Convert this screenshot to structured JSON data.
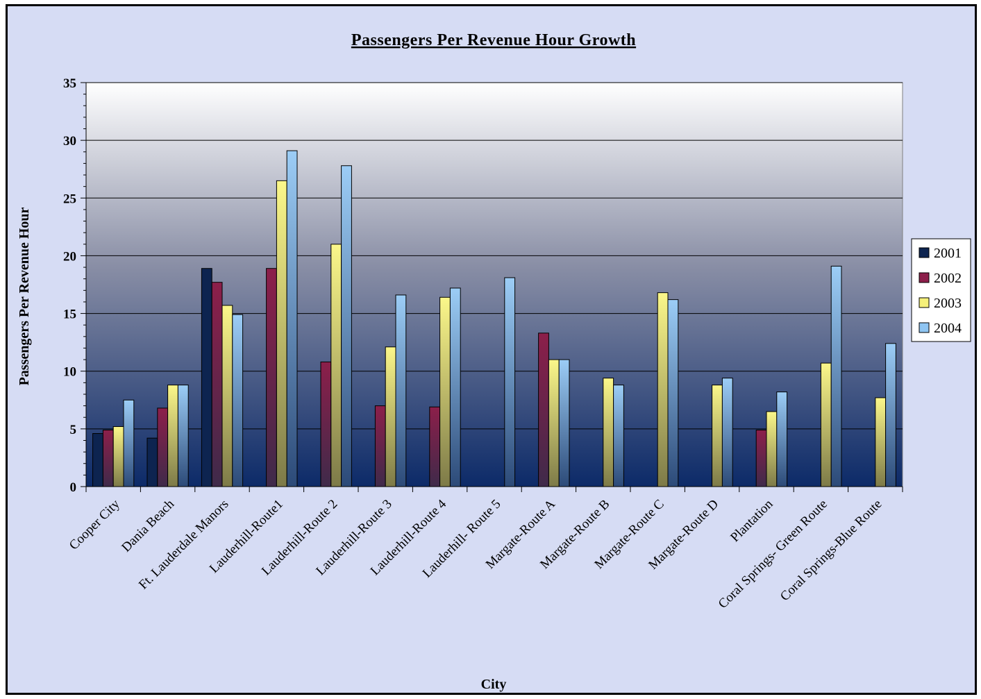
{
  "chart_data": {
    "type": "bar",
    "title": "Passengers Per Revenue Hour Growth",
    "xlabel": "City",
    "ylabel": "Passengers Per Revenue Hour",
    "ylim": [
      0,
      35
    ],
    "yticks": [
      "0",
      "5",
      "10",
      "15",
      "20",
      "25",
      "30",
      "35"
    ],
    "grid": true,
    "legend_position": "right",
    "categories": [
      "Cooper City",
      "Dania Beach",
      "Ft. Lauderdale Manors",
      "Lauderhill-Route1",
      "Lauderhill-Route 2",
      "Lauderhill-Route 3",
      "Lauderhill-Route 4",
      "Lauderhill- Route 5",
      "Margate-Route A",
      "Margate-Route B",
      "Margate-Route C",
      "Margate-Route D",
      "Plantation",
      "Coral Springs- Green Route",
      "Coral Springs-Blue Route"
    ],
    "series": [
      {
        "name": "2001",
        "color": "#0d2450",
        "values": [
          4.6,
          4.2,
          18.9,
          null,
          null,
          null,
          null,
          null,
          null,
          null,
          null,
          null,
          null,
          null,
          null
        ]
      },
      {
        "name": "2002",
        "color": "#8c1f4a",
        "values": [
          4.9,
          6.8,
          17.7,
          18.9,
          10.8,
          7.0,
          6.9,
          null,
          13.3,
          null,
          null,
          null,
          4.9,
          null,
          null
        ]
      },
      {
        "name": "2003",
        "color": "#f5f07a",
        "values": [
          5.2,
          8.8,
          15.7,
          26.5,
          21.0,
          12.1,
          16.4,
          null,
          11.0,
          9.4,
          16.8,
          8.8,
          6.5,
          10.7,
          7.7
        ]
      },
      {
        "name": "2004",
        "color": "#8fc5f2",
        "values": [
          7.5,
          8.8,
          14.9,
          29.1,
          27.8,
          16.6,
          17.2,
          18.1,
          11.0,
          8.8,
          16.2,
          9.4,
          8.2,
          19.1,
          12.4
        ]
      }
    ]
  }
}
